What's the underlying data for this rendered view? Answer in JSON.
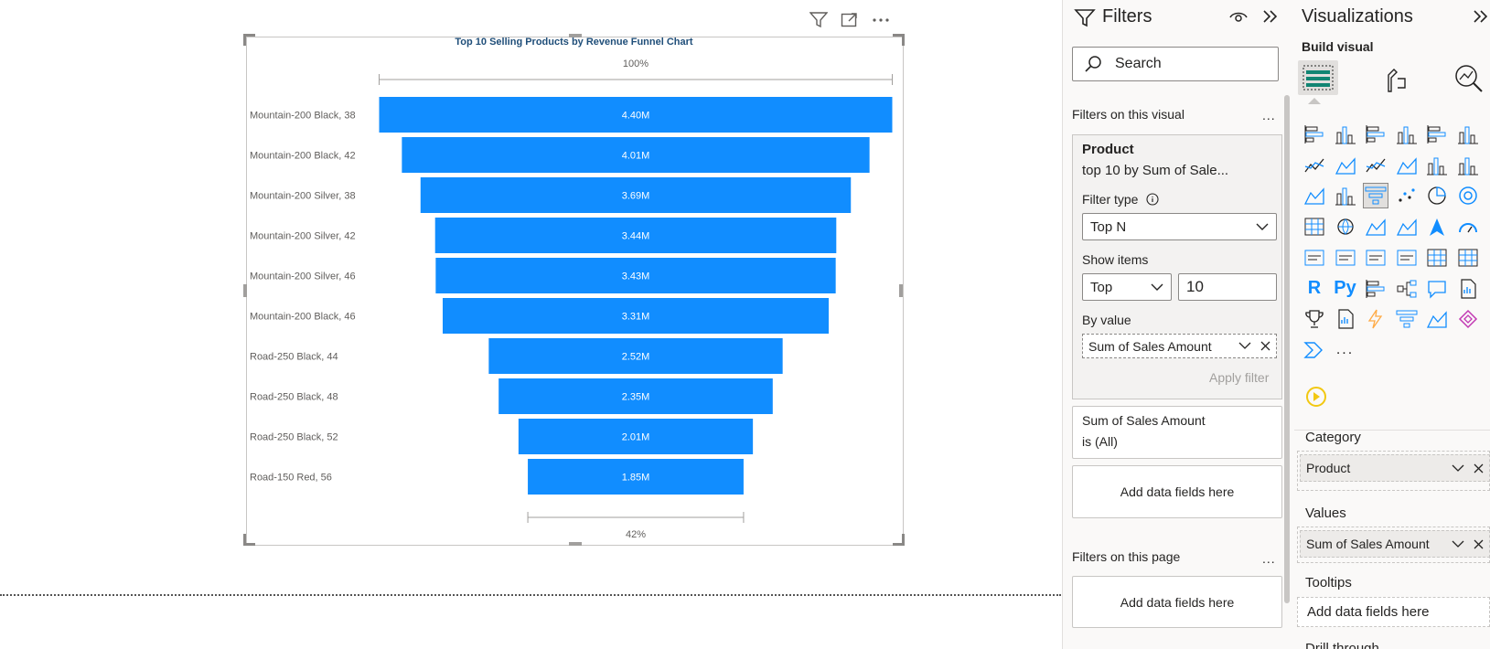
{
  "chart_data": {
    "type": "funnel",
    "title": "Top 10 Selling Products by Revenue Funnel Chart",
    "categories": [
      "Mountain-200 Black, 38",
      "Mountain-200 Black, 42",
      "Mountain-200 Silver, 38",
      "Mountain-200 Silver, 42",
      "Mountain-200 Silver, 46",
      "Mountain-200 Black, 46",
      "Road-250 Black, 44",
      "Road-250 Black, 48",
      "Road-250 Black, 52",
      "Road-150 Red, 56"
    ],
    "values": [
      4.4,
      4.01,
      3.69,
      3.44,
      3.43,
      3.31,
      2.52,
      2.35,
      2.01,
      1.85
    ],
    "value_labels": [
      "4.40M",
      "4.01M",
      "3.69M",
      "3.44M",
      "3.43M",
      "3.31M",
      "2.52M",
      "2.35M",
      "2.01M",
      "1.85M"
    ],
    "top_percent": "100%",
    "bottom_percent": "42%",
    "bar_color": "#118dff"
  },
  "filters": {
    "title": "Filters",
    "search_placeholder": "Search",
    "on_visual_label": "Filters on this visual",
    "product_card": {
      "field": "Product",
      "summary": "top 10 by Sum of Sale...",
      "filter_type_label": "Filter type",
      "filter_type_value": "Top N",
      "show_items_label": "Show items",
      "show_items_direction": "Top",
      "show_items_count": "10",
      "by_value_label": "By value",
      "by_value_field": "Sum of Sales Amount",
      "apply_label": "Apply filter"
    },
    "sales_card": {
      "field": "Sum of Sales Amount",
      "summary": "is (All)"
    },
    "add_fields_label": "Add data fields here",
    "on_page_label": "Filters on this page",
    "more_glyph": "..."
  },
  "visualizations": {
    "title": "Visualizations",
    "build_visual_label": "Build visual",
    "more_glyph": "...",
    "wells": {
      "category_label": "Category",
      "category_field": "Product",
      "values_label": "Values",
      "values_field": "Sum of Sales Amount",
      "tooltips_label": "Tooltips",
      "tooltips_placeholder": "Add data fields here",
      "drill_label": "Drill through"
    },
    "r_label": "R",
    "py_label": "Py",
    "accent_color": "#118dff"
  }
}
